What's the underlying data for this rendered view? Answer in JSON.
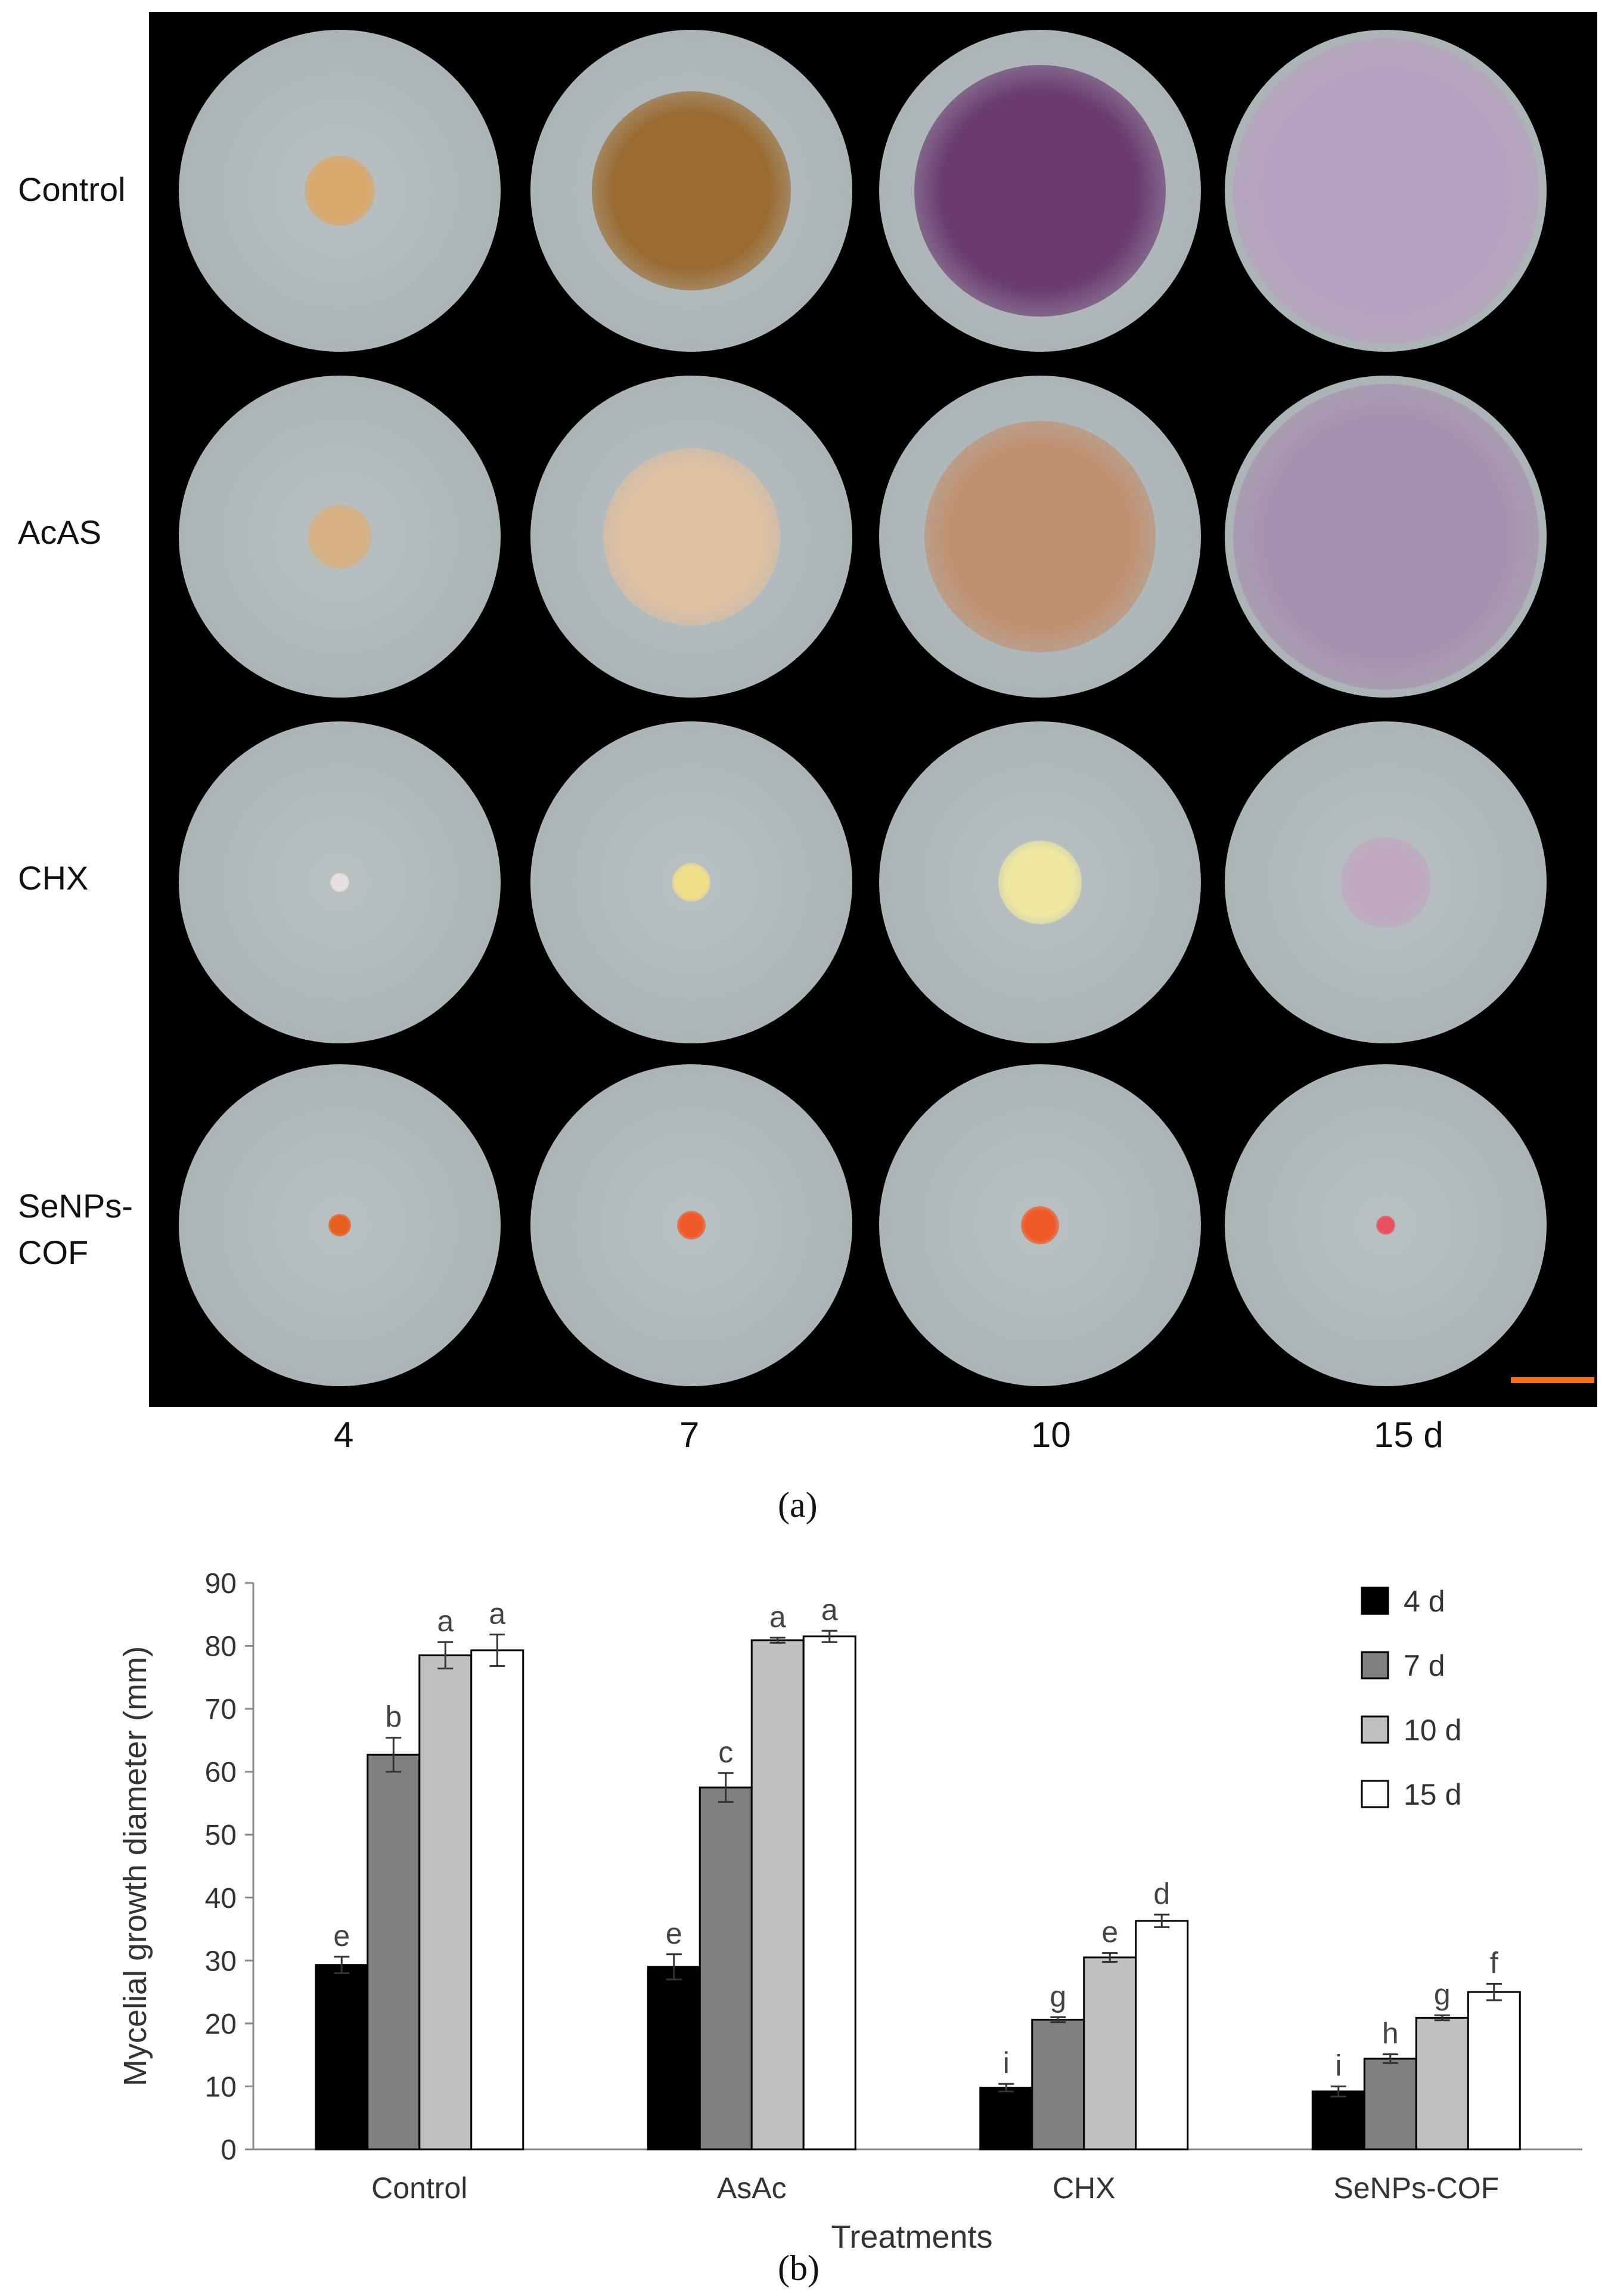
{
  "figure_a": {
    "row_labels": [
      "Control",
      "AcAS",
      "CHX",
      "SeNPs-\nCOF"
    ],
    "row_labels_display": [
      "Control",
      "AcAS",
      "CHX",
      "SeNPs-",
      "COF"
    ],
    "col_labels": [
      "4",
      "7",
      "10",
      "15 d"
    ],
    "caption": "(a)",
    "scale_bar_color": "#f07020",
    "plates": [
      [
        {
          "colony": "#d9a86a",
          "size": 0.22
        },
        {
          "colony": "#9a6a30",
          "size": 0.62
        },
        {
          "colony": "#6a3a70",
          "size": 0.78
        },
        {
          "colony": "#b8a0c0",
          "size": 0.95
        }
      ],
      [
        {
          "colony": "#d6b080",
          "size": 0.2
        },
        {
          "colony": "#e0c0a0",
          "size": 0.55
        },
        {
          "colony": "#c09070",
          "size": 0.72
        },
        {
          "colony": "#a890b0",
          "size": 0.95
        }
      ],
      [
        {
          "colony": "#e8e0e0",
          "size": 0.06
        },
        {
          "colony": "#f0e08a",
          "size": 0.12
        },
        {
          "colony": "#f0e8a0",
          "size": 0.26
        },
        {
          "colony": "#c0a8c0",
          "size": 0.28
        }
      ],
      [
        {
          "colony": "#e86020",
          "size": 0.07
        },
        {
          "colony": "#f05a28",
          "size": 0.09
        },
        {
          "colony": "#f05a28",
          "size": 0.12
        },
        {
          "colony": "#e85060",
          "size": 0.06
        }
      ]
    ]
  },
  "figure_b": {
    "caption": "(b)"
  },
  "chart_data": {
    "type": "bar",
    "categories": [
      "Control",
      "AsAc",
      "CHX",
      "SeNPs-COF"
    ],
    "xlabel": "Treatments",
    "ylabel": "Mycelial growth diameter (mm)",
    "ylim": [
      0,
      90
    ],
    "yticks": [
      "0",
      "10",
      "20",
      "30",
      "40",
      "50",
      "60",
      "70",
      "80",
      "90"
    ],
    "grid": false,
    "legend_position": "top-right",
    "series": [
      {
        "name": "4 d",
        "color": "#000000",
        "values": [
          29.3,
          29.0,
          9.8,
          9.2
        ],
        "errors": [
          1.3,
          2.0,
          0.6,
          0.8
        ],
        "letters": [
          "e",
          "e",
          "i",
          "i"
        ]
      },
      {
        "name": "7 d",
        "color": "#808080",
        "values": [
          62.7,
          57.5,
          20.6,
          14.4
        ],
        "errors": [
          2.7,
          2.3,
          0.4,
          0.7
        ],
        "letters": [
          "b",
          "c",
          "g",
          "h"
        ]
      },
      {
        "name": "10 d",
        "color": "#c0c0c0",
        "values": [
          78.5,
          80.9,
          30.5,
          20.9
        ],
        "errors": [
          2.1,
          0.4,
          0.7,
          0.4
        ],
        "letters": [
          "a",
          "a",
          "e",
          "g"
        ]
      },
      {
        "name": "15 d",
        "color": "#ffffff",
        "values": [
          79.3,
          81.5,
          36.3,
          25.0
        ],
        "errors": [
          2.5,
          0.9,
          1.0,
          1.3
        ],
        "letters": [
          "a",
          "a",
          "d",
          "f"
        ]
      }
    ]
  }
}
